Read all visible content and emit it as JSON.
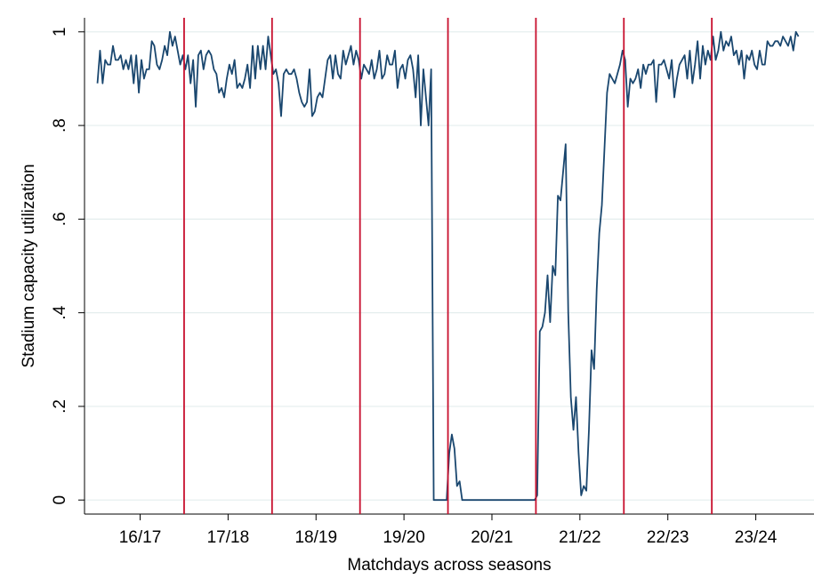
{
  "chart_data": {
    "type": "line",
    "xlabel": "Matchdays across seasons",
    "ylabel": "Stadium capacity utilization",
    "color": "#1a476f",
    "values": [
      0.89,
      0.96,
      0.89,
      0.94,
      0.93,
      0.93,
      0.97,
      0.94,
      0.94,
      0.95,
      0.92,
      0.94,
      0.92,
      0.95,
      0.89,
      0.95,
      0.87,
      0.94,
      0.9,
      0.92,
      0.92,
      0.98,
      0.97,
      0.93,
      0.92,
      0.94,
      0.97,
      0.95,
      1.0,
      0.97,
      0.99,
      0.96,
      0.93,
      0.95,
      0.92,
      0.95,
      0.89,
      0.94,
      0.84,
      0.95,
      0.96,
      0.92,
      0.95,
      0.96,
      0.95,
      0.92,
      0.91,
      0.87,
      0.88,
      0.86,
      0.9,
      0.93,
      0.91,
      0.94,
      0.88,
      0.89,
      0.88,
      0.9,
      0.93,
      0.88,
      0.97,
      0.9,
      0.97,
      0.92,
      0.97,
      0.92,
      0.99,
      0.95,
      0.91,
      0.92,
      0.89,
      0.82,
      0.91,
      0.92,
      0.91,
      0.91,
      0.92,
      0.9,
      0.87,
      0.85,
      0.84,
      0.85,
      0.92,
      0.82,
      0.83,
      0.86,
      0.87,
      0.86,
      0.9,
      0.94,
      0.95,
      0.9,
      0.95,
      0.91,
      0.9,
      0.96,
      0.93,
      0.95,
      0.97,
      0.93,
      0.96,
      0.94,
      0.9,
      0.93,
      0.92,
      0.91,
      0.94,
      0.9,
      0.92,
      0.96,
      0.9,
      0.91,
      0.95,
      0.93,
      0.93,
      0.96,
      0.88,
      0.92,
      0.93,
      0.9,
      0.94,
      0.95,
      0.92,
      0.86,
      0.95,
      0.8,
      0.92,
      0.86,
      0.8,
      0.92,
      0,
      0,
      0,
      0,
      0,
      0,
      0.1,
      0.14,
      0.11,
      0.03,
      0.04,
      0,
      0,
      0,
      0,
      0,
      0,
      0,
      0,
      0,
      0,
      0,
      0,
      0,
      0,
      0,
      0,
      0,
      0,
      0,
      0,
      0,
      0,
      0,
      0,
      0,
      0,
      0,
      0,
      0,
      0.01,
      0.36,
      0.37,
      0.4,
      0.48,
      0.38,
      0.5,
      0.48,
      0.65,
      0.64,
      0.7,
      0.76,
      0.4,
      0.22,
      0.15,
      0.22,
      0.1,
      0.01,
      0.03,
      0.02,
      0.15,
      0.32,
      0.28,
      0.45,
      0.57,
      0.63,
      0.75,
      0.87,
      0.91,
      0.9,
      0.89,
      0.91,
      0.93,
      0.96,
      0.94,
      0.84,
      0.9,
      0.89,
      0.9,
      0.92,
      0.88,
      0.93,
      0.91,
      0.93,
      0.93,
      0.94,
      0.85,
      0.93,
      0.93,
      0.94,
      0.92,
      0.9,
      0.94,
      0.86,
      0.9,
      0.93,
      0.94,
      0.95,
      0.9,
      0.96,
      0.89,
      0.93,
      0.98,
      0.9,
      0.97,
      0.93,
      0.96,
      0.94,
      0.99,
      0.94,
      0.96,
      1.0,
      0.96,
      0.98,
      0.97,
      0.99,
      0.95,
      0.96,
      0.93,
      0.96,
      0.9,
      0.95,
      0.94,
      0.96,
      0.93,
      0.92,
      0.96,
      0.93,
      0.93,
      0.98,
      0.97,
      0.97,
      0.98,
      0.98,
      0.97,
      0.99,
      0.98,
      0.97,
      0.99,
      0.96,
      1.0,
      0.99
    ],
    "xlim": [
      -5,
      277
    ],
    "xticks": [
      {
        "value": 16.5,
        "label": "16/17"
      },
      {
        "value": 50.5,
        "label": "17/18"
      },
      {
        "value": 84.5,
        "label": "18/19"
      },
      {
        "value": 118.5,
        "label": "19/20"
      },
      {
        "value": 152.5,
        "label": "20/21"
      },
      {
        "value": 186.5,
        "label": "21/22"
      },
      {
        "value": 220.5,
        "label": "22/23"
      },
      {
        "value": 254.5,
        "label": "23/24"
      }
    ],
    "ylim": [
      -0.03,
      1.03
    ],
    "yticks": [
      0,
      {
        "value": 0.2,
        "label": ".2"
      },
      {
        "value": 0.4,
        "label": ".4"
      },
      {
        "value": 0.6,
        "label": ".6"
      },
      {
        "value": 0.8,
        "label": ".8"
      },
      1
    ],
    "grid": true,
    "vlines": [
      33.5,
      67.5,
      101.5,
      135.5,
      169.5,
      203.5,
      237.5
    ],
    "vline_color": "#c8102e"
  }
}
